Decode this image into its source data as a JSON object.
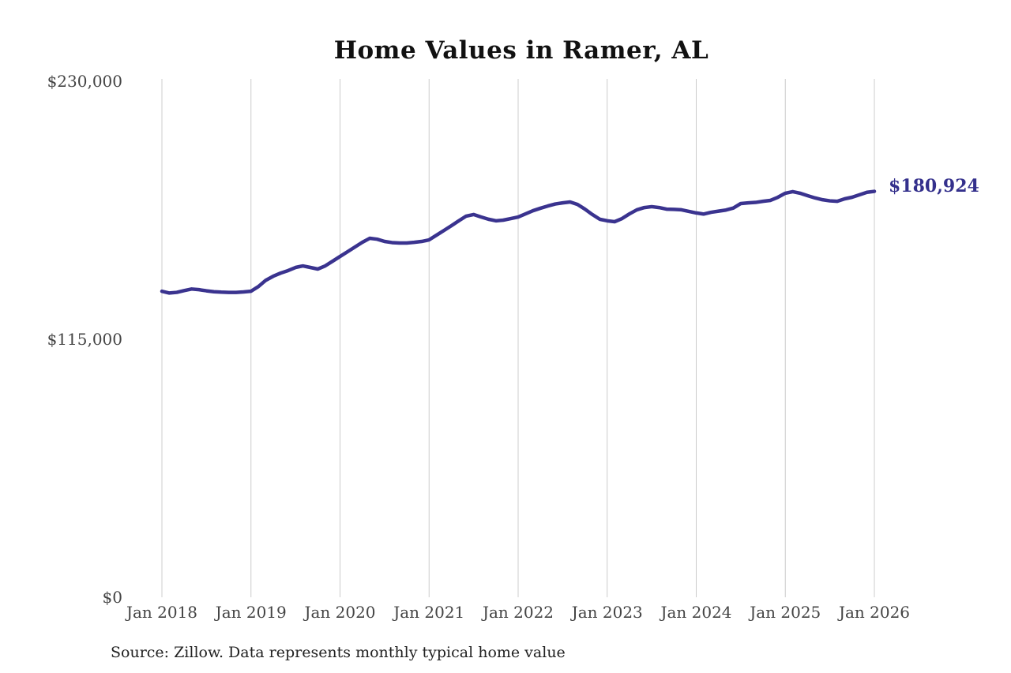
{
  "chart": {
    "title": "Home Values in Ramer, AL",
    "end_label": "$180,924",
    "source": "Source: Zillow. Data represents monthly typical home value"
  },
  "chart_data": {
    "type": "line",
    "title": "Home Values in Ramer, AL",
    "unit": "USD",
    "x_tick_labels": [
      "Jan 2018",
      "Jan 2019",
      "Jan 2020",
      "Jan 2021",
      "Jan 2022",
      "Jan 2023",
      "Jan 2024",
      "Jan 2025",
      "Jan 2026"
    ],
    "y_tick_labels": [
      "$0",
      "$115,000",
      "$230,000"
    ],
    "y_ticks": [
      0,
      115000,
      230000
    ],
    "ylim": [
      0,
      230000
    ],
    "grid": "vertical-only",
    "legend": "none",
    "end_value": 180924,
    "annotation": {
      "text": "$180,924",
      "color": "#34308c"
    },
    "line_color": "#3a338f",
    "gridline_color": "#cccccc",
    "tick_color": "#444444",
    "series": [
      {
        "name": "Monthly typical home value",
        "start": "2018-01",
        "interval": "monthly",
        "values": [
          136400,
          135600,
          135900,
          136700,
          137400,
          137100,
          136600,
          136200,
          136000,
          135900,
          135900,
          136100,
          136400,
          138500,
          141300,
          143100,
          144500,
          145600,
          147000,
          147700,
          147000,
          146300,
          147700,
          149800,
          151900,
          154000,
          156100,
          158200,
          160000,
          159600,
          158600,
          158100,
          157900,
          157900,
          158200,
          158600,
          159300,
          161400,
          163500,
          165600,
          167800,
          169900,
          170600,
          169500,
          168500,
          167800,
          168100,
          168800,
          169500,
          170900,
          172300,
          173400,
          174400,
          175300,
          175800,
          176200,
          175100,
          173000,
          170600,
          168500,
          167800,
          167400,
          168800,
          170900,
          172700,
          173700,
          174100,
          173700,
          173000,
          172900,
          172700,
          172000,
          171300,
          170800,
          171600,
          172100,
          172600,
          173500,
          175500,
          175800,
          176000,
          176500,
          176900,
          178300,
          180100,
          180800,
          180100,
          179000,
          178000,
          177200,
          176700,
          176500,
          177600,
          178300,
          179400,
          180500,
          180924
        ]
      }
    ]
  }
}
